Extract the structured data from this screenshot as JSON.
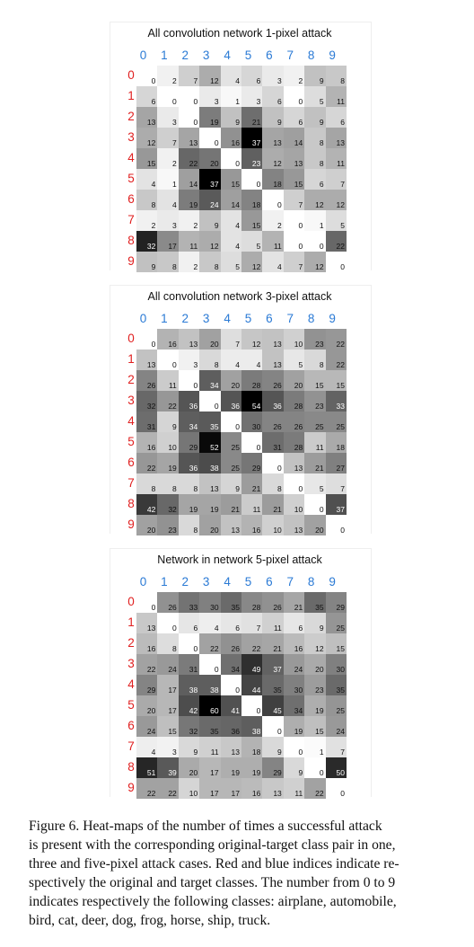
{
  "figure": {
    "x_labels": [
      "0",
      "1",
      "2",
      "3",
      "4",
      "5",
      "6",
      "7",
      "8",
      "9"
    ],
    "y_labels": [
      "0",
      "1",
      "2",
      "3",
      "4",
      "5",
      "6",
      "7",
      "8",
      "9"
    ],
    "caption_lines": [
      "Figure 6. Heat-maps of the number of times a successful attack",
      "is present with the corresponding original-target class pair in one,",
      "three and five-pixel attack cases. Red and blue indices indicate re-",
      "spectively the original and target classes. The number from 0 to 9",
      "indicates respectively the following classes: airplane, automobile,",
      "bird, cat, deer, dog, frog, horse, ship, truck."
    ],
    "colors": {
      "target_index": "#2a7ad5",
      "original_index": "#e02020",
      "grid": "#e6e6e6"
    }
  },
  "chart_data": [
    {
      "type": "heatmap",
      "title": "All convolution network 1-pixel attack",
      "xlabel": "",
      "ylabel": "",
      "vmax": 37,
      "values": [
        [
          0,
          2,
          7,
          12,
          4,
          6,
          3,
          2,
          9,
          8
        ],
        [
          6,
          0,
          0,
          3,
          1,
          3,
          6,
          0,
          5,
          11
        ],
        [
          13,
          3,
          0,
          19,
          9,
          21,
          9,
          6,
          9,
          6
        ],
        [
          12,
          7,
          13,
          0,
          16,
          37,
          13,
          14,
          8,
          13
        ],
        [
          15,
          2,
          22,
          20,
          0,
          23,
          12,
          13,
          8,
          11
        ],
        [
          4,
          1,
          14,
          37,
          15,
          0,
          18,
          15,
          6,
          7
        ],
        [
          8,
          4,
          19,
          24,
          14,
          18,
          0,
          7,
          12,
          12
        ],
        [
          2,
          3,
          2,
          9,
          4,
          15,
          2,
          0,
          1,
          5
        ],
        [
          32,
          17,
          11,
          12,
          4,
          5,
          11,
          0,
          0,
          22
        ],
        [
          9,
          8,
          2,
          8,
          5,
          12,
          4,
          7,
          12,
          0
        ]
      ]
    },
    {
      "type": "heatmap",
      "title": "All convolution network 3-pixel attack",
      "xlabel": "",
      "ylabel": "",
      "vmax": 54,
      "values": [
        [
          0,
          16,
          13,
          20,
          7,
          12,
          13,
          10,
          23,
          22
        ],
        [
          13,
          0,
          3,
          8,
          4,
          4,
          13,
          5,
          8,
          22
        ],
        [
          26,
          11,
          0,
          34,
          20,
          28,
          26,
          20,
          15,
          15
        ],
        [
          32,
          22,
          36,
          0,
          36,
          54,
          36,
          28,
          23,
          33
        ],
        [
          31,
          9,
          34,
          35,
          0,
          30,
          26,
          26,
          25,
          25
        ],
        [
          16,
          10,
          29,
          52,
          25,
          0,
          31,
          28,
          11,
          18
        ],
        [
          22,
          19,
          36,
          38,
          25,
          29,
          0,
          13,
          21,
          27
        ],
        [
          8,
          8,
          8,
          13,
          9,
          21,
          8,
          0,
          5,
          7
        ],
        [
          42,
          32,
          19,
          19,
          21,
          11,
          21,
          10,
          0,
          37
        ],
        [
          20,
          23,
          8,
          20,
          13,
          16,
          10,
          13,
          20,
          0
        ]
      ]
    },
    {
      "type": "heatmap",
      "title": "Network in network 5-pixel attack",
      "xlabel": "",
      "ylabel": "",
      "vmax": 60,
      "values": [
        [
          0,
          26,
          33,
          30,
          35,
          28,
          26,
          21,
          35,
          29
        ],
        [
          13,
          0,
          6,
          4,
          6,
          7,
          11,
          6,
          9,
          25
        ],
        [
          16,
          8,
          0,
          22,
          26,
          22,
          21,
          16,
          12,
          15
        ],
        [
          22,
          24,
          31,
          0,
          34,
          49,
          37,
          24,
          20,
          30
        ],
        [
          29,
          17,
          38,
          38,
          0,
          44,
          35,
          30,
          23,
          35
        ],
        [
          20,
          17,
          42,
          60,
          41,
          0,
          45,
          34,
          19,
          25
        ],
        [
          24,
          15,
          32,
          35,
          36,
          38,
          0,
          19,
          15,
          24
        ],
        [
          4,
          3,
          9,
          11,
          13,
          18,
          9,
          0,
          1,
          7
        ],
        [
          51,
          39,
          20,
          17,
          19,
          19,
          29,
          9,
          0,
          50
        ],
        [
          22,
          22,
          10,
          17,
          17,
          16,
          13,
          11,
          22,
          0
        ]
      ]
    }
  ]
}
